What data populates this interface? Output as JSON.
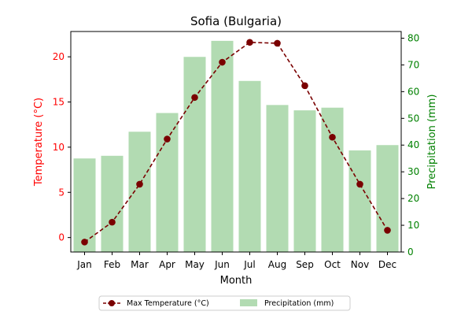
{
  "chart_data": {
    "type": "bar+line",
    "title": "Sofia (Bulgaria)",
    "xlabel": "Month",
    "categories": [
      "Jan",
      "Feb",
      "Mar",
      "Apr",
      "May",
      "Jun",
      "Jul",
      "Aug",
      "Sep",
      "Oct",
      "Nov",
      "Dec"
    ],
    "left_axis": {
      "label": "Temperature (°C)",
      "color": "#ff0000",
      "ylim": [
        -1.6,
        22.8
      ],
      "ticks": [
        0,
        5,
        10,
        15,
        20
      ]
    },
    "right_axis": {
      "label": "Precipitation (mm)",
      "color": "#008000",
      "ylim": [
        0,
        82.5
      ],
      "ticks": [
        0,
        10,
        20,
        30,
        40,
        50,
        60,
        70,
        80
      ]
    },
    "series": [
      {
        "name": "Precipitation (mm)",
        "type": "bar",
        "axis": "right",
        "color": "#b2dbb2",
        "values": [
          35,
          36,
          45,
          52,
          73,
          79,
          64,
          55,
          53,
          54,
          38,
          40
        ]
      },
      {
        "name": "Max Temperature (°C)",
        "type": "line",
        "axis": "left",
        "color": "#7a0000",
        "line_style": "dashed",
        "marker": "circle",
        "values": [
          -0.5,
          1.7,
          5.9,
          10.9,
          15.5,
          19.4,
          21.6,
          21.5,
          16.8,
          11.1,
          5.9,
          0.8
        ]
      }
    ],
    "legend": {
      "position": "bottom-center",
      "entries": [
        "Max Temperature (°C)",
        "Precipitation (mm)"
      ]
    },
    "grid": false
  }
}
